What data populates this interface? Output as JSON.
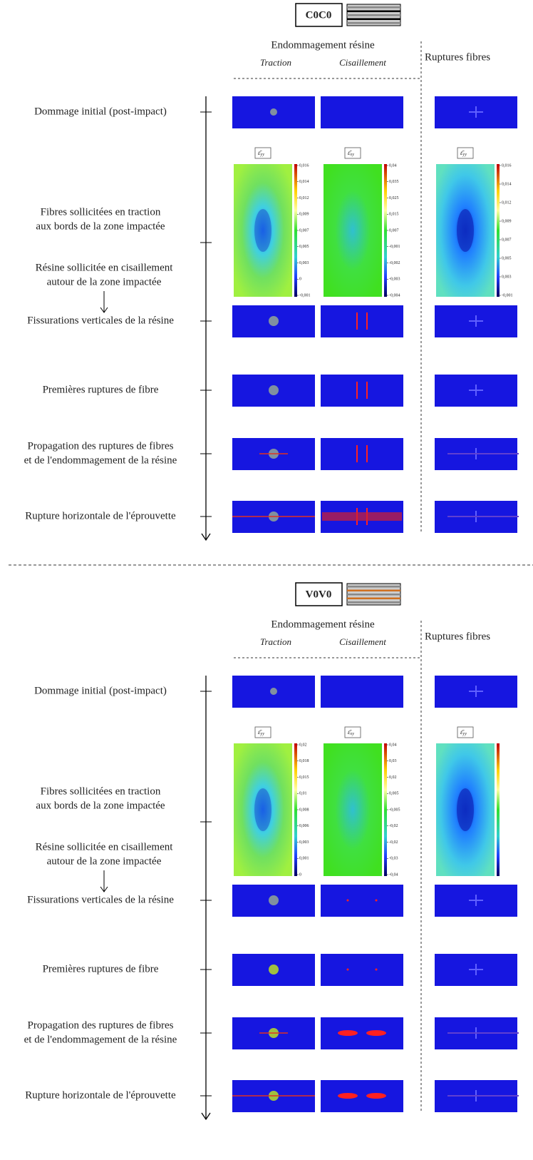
{
  "panels": [
    {
      "title": "C0C0",
      "header": {
        "group": "Endommagement résine",
        "sub": [
          "Traction",
          "Cisaillement"
        ],
        "fibres": "Ruptures fibres"
      },
      "stages": [
        {
          "lines": [
            "Dommage initial (post-impact)"
          ]
        },
        {
          "lines": [
            "Fibres sollicitées en traction",
            "aux bords de la zone impactée"
          ]
        },
        {
          "lines": [
            "Fissurations verticales de la résine"
          ]
        },
        {
          "lines": [
            "Premières ruptures de fibre"
          ]
        },
        {
          "lines": [
            "Propagation des ruptures de fibres",
            "et de l'endommagement de la résine"
          ]
        },
        {
          "lines": [
            "Rupture horizontale de l'éprouvette"
          ]
        }
      ],
      "note": [
        "Résine sollicitée en cisaillement",
        "autour de la zone impactée"
      ],
      "fields": [
        {
          "symbol": "ε̄",
          "sub": "yy",
          "ticks": [
            "0,016",
            "0,014",
            "0,012",
            "0,009",
            "0,007",
            "0,005",
            "0,003",
            "0",
            "-0,001"
          ]
        },
        {
          "symbol": "ε̄",
          "sub": "xy",
          "ticks": [
            "0,04",
            "0,035",
            "0,025",
            "0,015",
            "0,007",
            "-0,001",
            "-0,002",
            "-0,003",
            "-0,004"
          ]
        },
        {
          "symbol": "ε̄",
          "sub": "yy",
          "ticks": [
            "0,016",
            "0,014",
            "0,012",
            "0,009",
            "0,007",
            "0,005",
            "0,003",
            "-0,001"
          ]
        }
      ]
    },
    {
      "title": "V0V0",
      "header": {
        "group": "Endommagement résine",
        "sub": [
          "Traction",
          "Cisaillement"
        ],
        "fibres": "Ruptures fibres"
      },
      "stages": [
        {
          "lines": [
            "Dommage initial (post-impact)"
          ]
        },
        {
          "lines": [
            "Fibres sollicitées en traction",
            "aux bords de la zone impactée"
          ]
        },
        {
          "lines": [
            "Fissurations verticales de la résine"
          ]
        },
        {
          "lines": [
            "Premières ruptures de fibre"
          ]
        },
        {
          "lines": [
            "Propagation des ruptures de fibres",
            "et de l'endommagement de la résine"
          ]
        },
        {
          "lines": [
            "Rupture horizontale de l'éprouvette"
          ]
        }
      ],
      "note": [
        "Résine sollicitée en cisaillement",
        "autour de la zone impactée"
      ],
      "fields": [
        {
          "symbol": "ε̄",
          "sub": "yy",
          "ticks": [
            "0,02",
            "0,018",
            "0,015",
            "0,01",
            "0,008",
            "0,006",
            "0,003",
            "0,001",
            "0"
          ]
        },
        {
          "symbol": "ε̄",
          "sub": "xy",
          "ticks": [
            "0,04",
            "0,03",
            "0,02",
            "0,005",
            "-0,005",
            "-0,02",
            "-0,02",
            "-0,03",
            "-0,04"
          ]
        },
        {
          "symbol": "ε̄",
          "sub": "yy",
          "ticks": []
        }
      ]
    }
  ]
}
